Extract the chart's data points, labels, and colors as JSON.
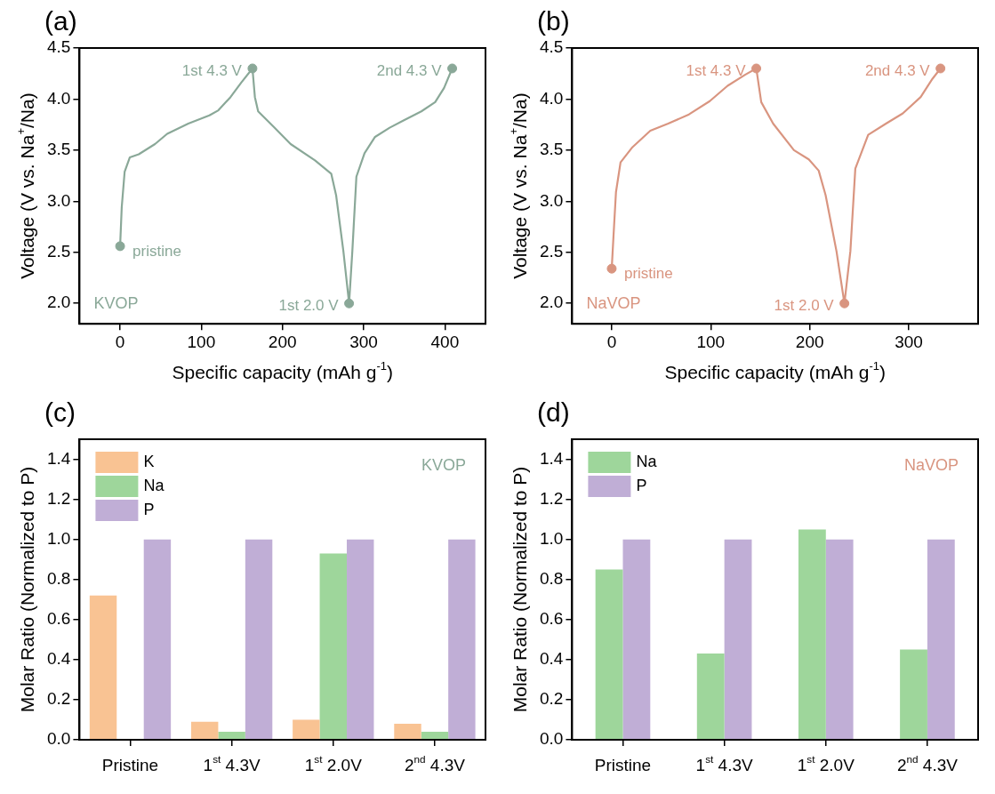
{
  "chart_data": [
    {
      "type": "line",
      "title": "(a)",
      "xlabel": "Specific capacity (mAh g$^{-1}$)",
      "ylabel": "Voltage (V vs. Na$^{+}$/Na)",
      "xlim": [
        -50,
        450
      ],
      "xticks": [
        0,
        100,
        200,
        300,
        400
      ],
      "ylim": [
        1.8,
        4.5
      ],
      "yticks": [
        {
          "value": 2,
          "label": "2.0"
        },
        2.5,
        {
          "value": 3,
          "label": "3.0"
        },
        3.5,
        {
          "value": 4,
          "label": "4.0"
        },
        4.5
      ],
      "series": [
        {
          "color": "#8aa898",
          "x": [
            0,
            2,
            5.6,
            12,
            23,
            43,
            58,
            84,
            110,
            121,
            136,
            149,
            163,
            166,
            170,
            189,
            210,
            240,
            260,
            266,
            275,
            282,
            286,
            291,
            301,
            314,
            332,
            349,
            371,
            388,
            399,
            409
          ],
          "values": [
            2.56,
            2.94,
            3.29,
            3.43,
            3.46,
            3.56,
            3.66,
            3.76,
            3.84,
            3.89,
            4.02,
            4.16,
            4.3,
            4.02,
            3.88,
            3.73,
            3.56,
            3.4,
            3.27,
            3.06,
            2.51,
            2.0,
            2.51,
            3.24,
            3.47,
            3.63,
            3.72,
            3.79,
            3.88,
            3.97,
            4.11,
            4.3
          ]
        },
        {
          "type": "scatter",
          "color": "#8aa898",
          "x": [
            0,
            163,
            282,
            409
          ],
          "values": [
            2.56,
            4.3,
            2.0,
            4.3
          ]
        }
      ],
      "annotations": [
        {
          "text": "pristine",
          "x": 0,
          "y": 2.56
        },
        {
          "text": "1st 4.3 V",
          "x": 163,
          "y": 4.3
        },
        {
          "text": "1st 2.0 V",
          "x": 282,
          "y": 2.0
        },
        {
          "text": "2nd 4.3 V",
          "x": 409,
          "y": 4.3
        },
        "KVOP"
      ]
    },
    {
      "type": "line",
      "title": "(b)",
      "xlabel": "Specific capacity (mAh g$^{-1}$)",
      "ylabel": "Voltage (V vs. Na$^{+}$/Na)",
      "xlim": [
        -40,
        370
      ],
      "xticks": [
        0,
        100,
        200,
        300
      ],
      "ylim": [
        1.8,
        4.5
      ],
      "yticks": [
        {
          "value": 2,
          "label": "2.0"
        },
        2.5,
        {
          "value": 3,
          "label": "3.0"
        },
        3.5,
        {
          "value": 4,
          "label": "4.0"
        },
        4.5
      ],
      "series": [
        {
          "color": "#d99580",
          "x": [
            0,
            1.8,
            4.3,
            8.9,
            21,
            39,
            57,
            78,
            99,
            117,
            135,
            146,
            151,
            163,
            184,
            199,
            209,
            216,
            227,
            235,
            241,
            246,
            259,
            277,
            294,
            312,
            324,
            332
          ],
          "values": [
            2.34,
            2.66,
            3.09,
            3.38,
            3.53,
            3.69,
            3.76,
            3.85,
            3.98,
            4.13,
            4.24,
            4.3,
            3.97,
            3.76,
            3.5,
            3.41,
            3.3,
            3.06,
            2.51,
            2.0,
            2.51,
            3.32,
            3.65,
            3.76,
            3.86,
            4.02,
            4.2,
            4.3
          ]
        },
        {
          "type": "scatter",
          "color": "#d99580",
          "x": [
            0,
            146,
            235,
            332
          ],
          "values": [
            2.34,
            4.3,
            2.0,
            4.3
          ]
        }
      ],
      "annotations": [
        {
          "text": "pristine",
          "x": 0,
          "y": 2.34
        },
        {
          "text": "1st 4.3 V",
          "x": 146,
          "y": 4.3
        },
        {
          "text": "1st 2.0 V",
          "x": 235,
          "y": 2.0
        },
        {
          "text": "2nd 4.3 V",
          "x": 332,
          "y": 4.3
        },
        "NaVOP"
      ]
    },
    {
      "type": "bar",
      "title": "(c)",
      "ylabel": "Molar Ratio (Normalized to P)",
      "categories": [
        "Pristine",
        "1$^{st}$ 4.3V",
        "1$^{st}$ 2.0V",
        "2$^{nd}$ 4.3V"
      ],
      "ylim": [
        0,
        1.5
      ],
      "yticks": [
        {
          "value": 0,
          "label": "0.0"
        },
        0.2,
        0.4,
        0.6,
        0.8,
        {
          "value": 1,
          "label": "1.0"
        },
        1.2,
        1.4
      ],
      "legend": "top left",
      "series": [
        {
          "name": "K",
          "color": "#f9c393",
          "values": [
            0.72,
            0.09,
            0.1,
            0.08
          ]
        },
        {
          "name": "Na",
          "color": "#9ed69b",
          "values": [
            null,
            0.04,
            0.93,
            0.04
          ]
        },
        {
          "name": "P",
          "color": "#c0aed6",
          "values": [
            1,
            1,
            1,
            1
          ]
        }
      ],
      "annotations": [
        "KVOP"
      ]
    },
    {
      "type": "bar",
      "title": "(d)",
      "ylabel": "Molar Ratio (Normalized to P)",
      "categories": [
        "Pristine",
        "1$^{st}$ 4.3V",
        "1$^{st}$ 2.0V",
        "2$^{nd}$ 4.3V"
      ],
      "ylim": [
        0,
        1.5
      ],
      "yticks": [
        {
          "value": 0,
          "label": "0.0"
        },
        0.2,
        0.4,
        0.6,
        0.8,
        {
          "value": 1,
          "label": "1.0"
        },
        1.2,
        1.4
      ],
      "legend": "top left",
      "series": [
        {
          "name": "Na",
          "color": "#9ed69b",
          "values": [
            0.85,
            0.43,
            1.05,
            0.45
          ]
        },
        {
          "name": "P",
          "color": "#c0aed6",
          "values": [
            1,
            1,
            1,
            1
          ]
        }
      ],
      "annotations": [
        "NaVOP"
      ]
    }
  ]
}
